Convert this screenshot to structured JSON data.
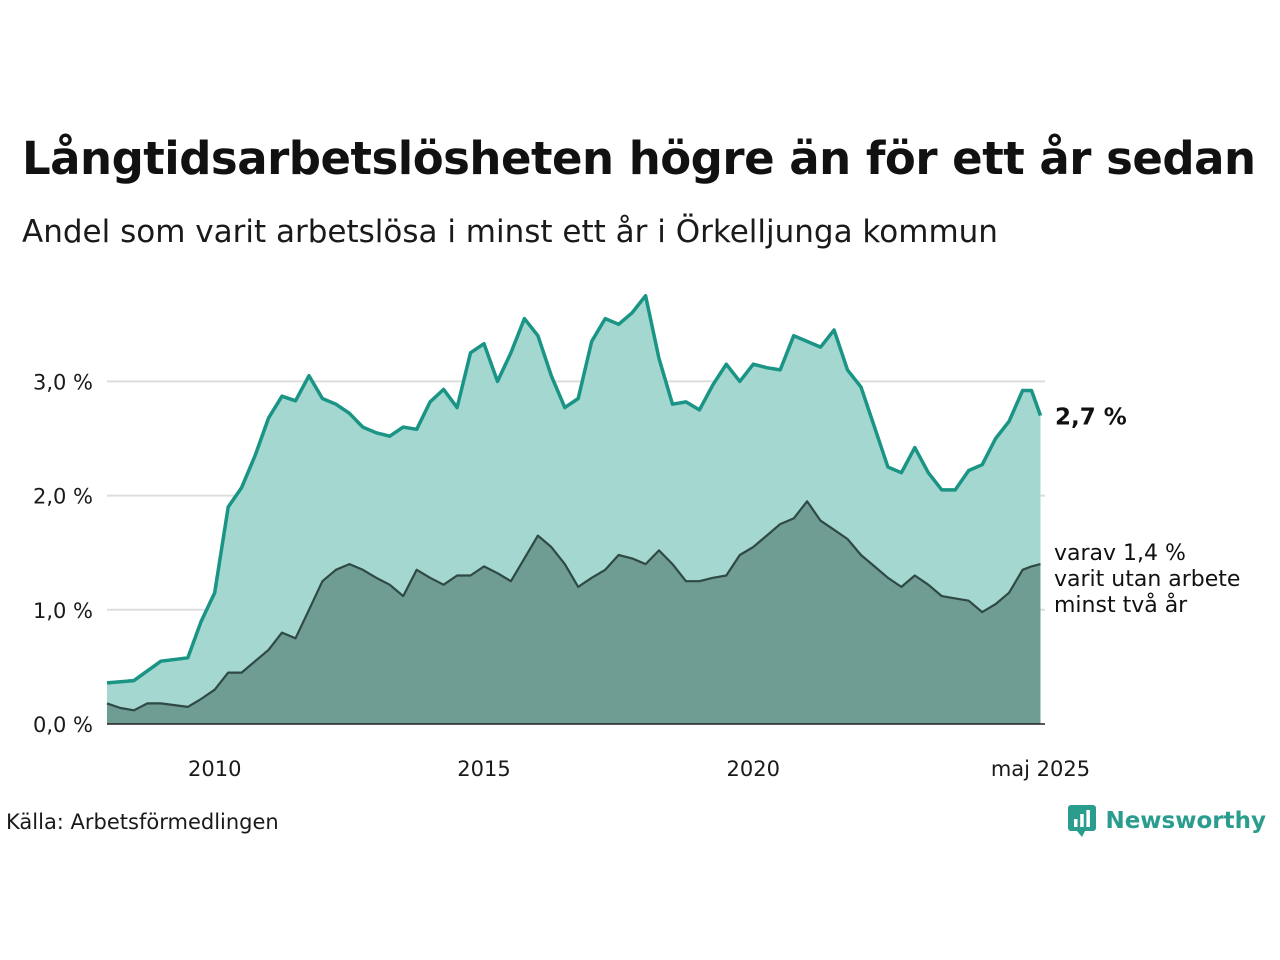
{
  "title": "Långtidsarbetslösheten högre än för ett år sedan",
  "subtitle": "Andel som varit arbetslösa i minst ett år i Örkelljunga kommun",
  "source": "Källa: Arbetsförmedlingen",
  "brand": {
    "name": "Newsworthy",
    "icon": "newsworthy-logo-icon",
    "color": "#2a9d8f"
  },
  "colors": {
    "series1_line": "#1a9485",
    "series1_fill": "#a3d7d0",
    "series2_line": "#2f4a44",
    "series2_fill": "#6f9c93",
    "grid": "#dddddd"
  },
  "chart_data": {
    "type": "area",
    "ylim": [
      0,
      3.8
    ],
    "yticks": [
      0,
      1,
      2,
      3
    ],
    "ytick_labels": [
      "0,0 %",
      "1,0 %",
      "2,0 %",
      "3,0 %"
    ],
    "xlim": [
      2008.0,
      2025.4167
    ],
    "xticks": [
      2010,
      2015,
      2020,
      2025.333
    ],
    "xtick_labels": [
      "2010",
      "2015",
      "2020",
      "maj 2025"
    ],
    "grid": "horizontal",
    "end_label": "2,7 %",
    "sub_label_lines": [
      "varav 1,4 %",
      "varit utan arbete",
      "minst två år"
    ],
    "series": [
      {
        "key": "minst_ett_ar",
        "points": [
          [
            2008.0,
            0.36
          ],
          [
            2008.5,
            0.38
          ],
          [
            2009.0,
            0.55
          ],
          [
            2009.5,
            0.58
          ],
          [
            2009.75,
            0.9
          ],
          [
            2010.0,
            1.15
          ],
          [
            2010.25,
            1.9
          ],
          [
            2010.5,
            2.07
          ],
          [
            2010.75,
            2.35
          ],
          [
            2011.0,
            2.68
          ],
          [
            2011.25,
            2.87
          ],
          [
            2011.5,
            2.83
          ],
          [
            2011.75,
            3.05
          ],
          [
            2012.0,
            2.85
          ],
          [
            2012.25,
            2.8
          ],
          [
            2012.5,
            2.72
          ],
          [
            2012.75,
            2.6
          ],
          [
            2013.0,
            2.55
          ],
          [
            2013.25,
            2.52
          ],
          [
            2013.5,
            2.6
          ],
          [
            2013.75,
            2.58
          ],
          [
            2014.0,
            2.82
          ],
          [
            2014.25,
            2.93
          ],
          [
            2014.5,
            2.77
          ],
          [
            2014.75,
            3.25
          ],
          [
            2015.0,
            3.33
          ],
          [
            2015.25,
            3.0
          ],
          [
            2015.5,
            3.25
          ],
          [
            2015.75,
            3.55
          ],
          [
            2016.0,
            3.4
          ],
          [
            2016.25,
            3.05
          ],
          [
            2016.5,
            2.77
          ],
          [
            2016.75,
            2.85
          ],
          [
            2017.0,
            3.35
          ],
          [
            2017.25,
            3.55
          ],
          [
            2017.5,
            3.5
          ],
          [
            2017.75,
            3.6
          ],
          [
            2018.0,
            3.75
          ],
          [
            2018.25,
            3.2
          ],
          [
            2018.5,
            2.8
          ],
          [
            2018.75,
            2.82
          ],
          [
            2019.0,
            2.75
          ],
          [
            2019.25,
            2.97
          ],
          [
            2019.5,
            3.15
          ],
          [
            2019.75,
            3.0
          ],
          [
            2020.0,
            3.15
          ],
          [
            2020.25,
            3.12
          ],
          [
            2020.5,
            3.1
          ],
          [
            2020.75,
            3.4
          ],
          [
            2021.0,
            3.35
          ],
          [
            2021.25,
            3.3
          ],
          [
            2021.5,
            3.45
          ],
          [
            2021.75,
            3.1
          ],
          [
            2022.0,
            2.95
          ],
          [
            2022.25,
            2.6
          ],
          [
            2022.5,
            2.25
          ],
          [
            2022.75,
            2.2
          ],
          [
            2023.0,
            2.42
          ],
          [
            2023.25,
            2.2
          ],
          [
            2023.5,
            2.05
          ],
          [
            2023.75,
            2.05
          ],
          [
            2024.0,
            2.22
          ],
          [
            2024.25,
            2.27
          ],
          [
            2024.5,
            2.5
          ],
          [
            2024.75,
            2.65
          ],
          [
            2025.0,
            2.92
          ],
          [
            2025.1667,
            2.92
          ],
          [
            2025.3333,
            2.7
          ]
        ]
      },
      {
        "key": "minst_tva_ar",
        "points": [
          [
            2008.0,
            0.18
          ],
          [
            2008.25,
            0.14
          ],
          [
            2008.5,
            0.12
          ],
          [
            2008.75,
            0.18
          ],
          [
            2009.0,
            0.18
          ],
          [
            2009.5,
            0.15
          ],
          [
            2009.75,
            0.22
          ],
          [
            2010.0,
            0.3
          ],
          [
            2010.25,
            0.45
          ],
          [
            2010.5,
            0.45
          ],
          [
            2010.75,
            0.55
          ],
          [
            2011.0,
            0.65
          ],
          [
            2011.25,
            0.8
          ],
          [
            2011.5,
            0.75
          ],
          [
            2011.75,
            1.0
          ],
          [
            2012.0,
            1.25
          ],
          [
            2012.25,
            1.35
          ],
          [
            2012.5,
            1.4
          ],
          [
            2012.75,
            1.35
          ],
          [
            2013.0,
            1.28
          ],
          [
            2013.25,
            1.22
          ],
          [
            2013.5,
            1.12
          ],
          [
            2013.75,
            1.35
          ],
          [
            2014.0,
            1.28
          ],
          [
            2014.25,
            1.22
          ],
          [
            2014.5,
            1.3
          ],
          [
            2014.75,
            1.3
          ],
          [
            2015.0,
            1.38
          ],
          [
            2015.25,
            1.32
          ],
          [
            2015.5,
            1.25
          ],
          [
            2015.75,
            1.45
          ],
          [
            2016.0,
            1.65
          ],
          [
            2016.25,
            1.55
          ],
          [
            2016.5,
            1.4
          ],
          [
            2016.75,
            1.2
          ],
          [
            2017.0,
            1.28
          ],
          [
            2017.25,
            1.35
          ],
          [
            2017.5,
            1.48
          ],
          [
            2017.75,
            1.45
          ],
          [
            2018.0,
            1.4
          ],
          [
            2018.25,
            1.52
          ],
          [
            2018.5,
            1.4
          ],
          [
            2018.75,
            1.25
          ],
          [
            2019.0,
            1.25
          ],
          [
            2019.25,
            1.28
          ],
          [
            2019.5,
            1.3
          ],
          [
            2019.75,
            1.48
          ],
          [
            2020.0,
            1.55
          ],
          [
            2020.25,
            1.65
          ],
          [
            2020.5,
            1.75
          ],
          [
            2020.75,
            1.8
          ],
          [
            2021.0,
            1.95
          ],
          [
            2021.25,
            1.78
          ],
          [
            2021.5,
            1.7
          ],
          [
            2021.75,
            1.62
          ],
          [
            2022.0,
            1.48
          ],
          [
            2022.25,
            1.38
          ],
          [
            2022.5,
            1.28
          ],
          [
            2022.75,
            1.2
          ],
          [
            2023.0,
            1.3
          ],
          [
            2023.25,
            1.22
          ],
          [
            2023.5,
            1.12
          ],
          [
            2023.75,
            1.1
          ],
          [
            2024.0,
            1.08
          ],
          [
            2024.25,
            0.98
          ],
          [
            2024.5,
            1.05
          ],
          [
            2024.75,
            1.15
          ],
          [
            2025.0,
            1.35
          ],
          [
            2025.1667,
            1.38
          ],
          [
            2025.3333,
            1.4
          ]
        ]
      }
    ]
  }
}
